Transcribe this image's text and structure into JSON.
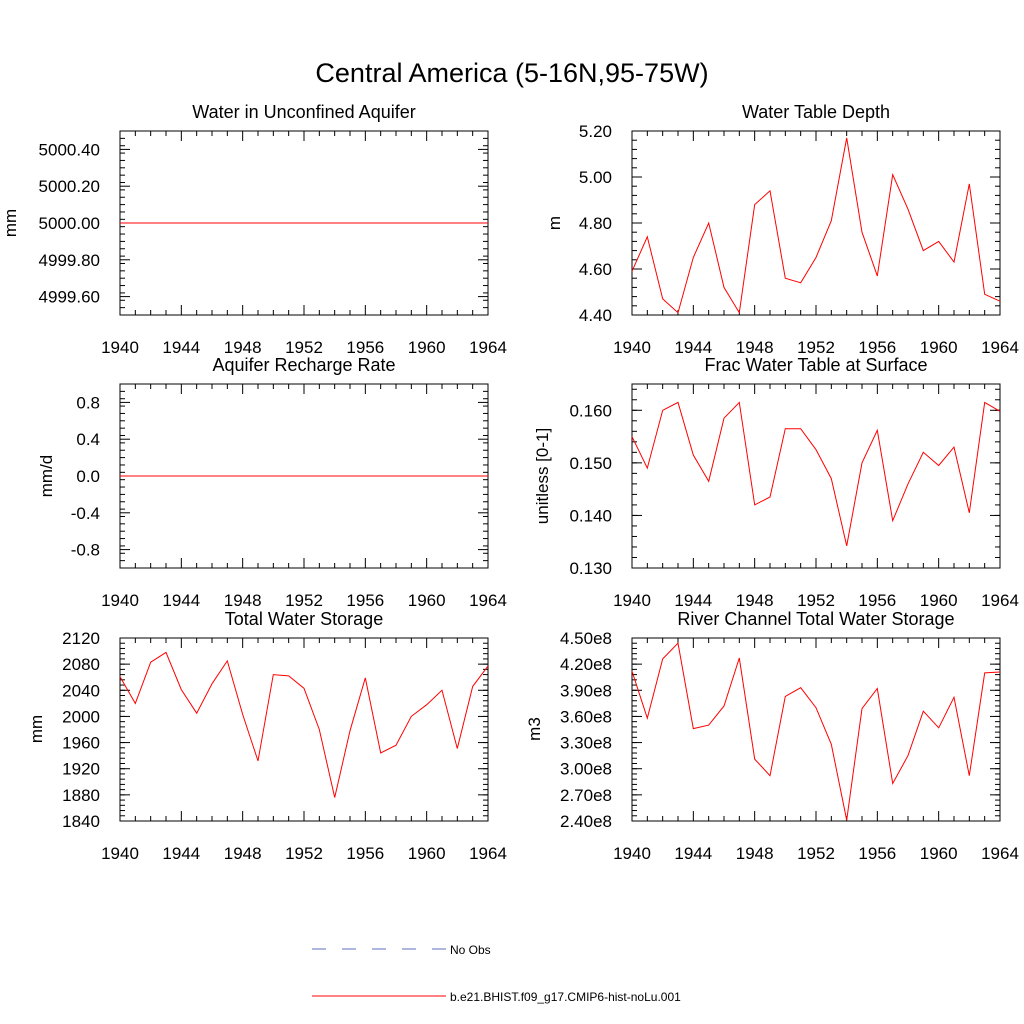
{
  "figure_title": "Central America (5-16N,95-75W)",
  "colors": {
    "model_line": "#ff0000",
    "obs_line": "#5b6fbf",
    "axis": "#000000"
  },
  "legend": [
    {
      "label": "No Obs",
      "style": "dashed",
      "color": "#5b6fbf"
    },
    {
      "label": "b.e21.BHIST.f09_g17.CMIP6-hist-noLu.001",
      "style": "solid",
      "color": "#ff0000"
    }
  ],
  "chart_data": [
    {
      "type": "line",
      "title": "Water in Unconfined Aquifer",
      "xlabel": "",
      "ylabel": "mm",
      "xlim": [
        1940,
        1964
      ],
      "ylim": [
        4999.5,
        5000.5
      ],
      "xticks": [
        "1940",
        "1944",
        "1948",
        "1952",
        "1956",
        "1960",
        "1964"
      ],
      "yticks": [
        {
          "v": 4999.6,
          "label": "4999.60"
        },
        {
          "v": 4999.8,
          "label": "4999.80"
        },
        {
          "v": 5000.0,
          "label": "5000.00"
        },
        {
          "v": 5000.2,
          "label": "5000.20"
        },
        {
          "v": 5000.4,
          "label": "5000.40"
        }
      ],
      "x": [
        1940,
        1964
      ],
      "series": [
        {
          "values": [
            5000.0,
            5000.0
          ]
        }
      ]
    },
    {
      "type": "line",
      "title": "Water Table Depth",
      "xlabel": "",
      "ylabel": "m",
      "xlim": [
        1940,
        1964
      ],
      "ylim": [
        4.4,
        5.2
      ],
      "xticks": [
        "1940",
        "1944",
        "1948",
        "1952",
        "1956",
        "1960",
        "1964"
      ],
      "yticks": [
        {
          "v": 4.4,
          "label": "4.40"
        },
        {
          "v": 4.6,
          "label": "4.60"
        },
        {
          "v": 4.8,
          "label": "4.80"
        },
        {
          "v": 5.0,
          "label": "5.00"
        },
        {
          "v": 5.2,
          "label": "5.20"
        }
      ],
      "x": [
        1940,
        1941,
        1942,
        1943,
        1944,
        1945,
        1946,
        1947,
        1948,
        1949,
        1950,
        1951,
        1952,
        1953,
        1954,
        1955,
        1956,
        1957,
        1958,
        1959,
        1960,
        1961,
        1962,
        1963,
        1964
      ],
      "series": [
        {
          "values": [
            4.59,
            4.74,
            4.47,
            4.41,
            4.65,
            4.8,
            4.52,
            4.41,
            4.88,
            4.94,
            4.56,
            4.54,
            4.65,
            4.81,
            5.17,
            4.76,
            4.57,
            5.01,
            4.86,
            4.68,
            4.72,
            4.63,
            4.97,
            4.49,
            4.46
          ]
        }
      ]
    },
    {
      "type": "line",
      "title": "Aquifer Recharge Rate",
      "xlabel": "",
      "ylabel": "mm/d",
      "xlim": [
        1940,
        1964
      ],
      "ylim": [
        -1.0,
        1.0
      ],
      "xticks": [
        "1940",
        "1944",
        "1948",
        "1952",
        "1956",
        "1960",
        "1964"
      ],
      "yticks": [
        {
          "v": -0.8,
          "label": "-0.8"
        },
        {
          "v": -0.4,
          "label": "-0.4"
        },
        {
          "v": 0.0,
          "label": "0.0"
        },
        {
          "v": 0.4,
          "label": "0.4"
        },
        {
          "v": 0.8,
          "label": "0.8"
        }
      ],
      "x": [
        1940,
        1964
      ],
      "series": [
        {
          "values": [
            0.0,
            0.0
          ]
        }
      ]
    },
    {
      "type": "line",
      "title": "Frac Water Table at Surface",
      "xlabel": "",
      "ylabel": "unitless [0-1]",
      "xlim": [
        1940,
        1964
      ],
      "ylim": [
        0.13,
        0.165
      ],
      "xticks": [
        "1940",
        "1944",
        "1948",
        "1952",
        "1956",
        "1960",
        "1964"
      ],
      "yticks": [
        {
          "v": 0.13,
          "label": "0.130"
        },
        {
          "v": 0.14,
          "label": "0.140"
        },
        {
          "v": 0.15,
          "label": "0.150"
        },
        {
          "v": 0.16,
          "label": "0.160"
        }
      ],
      "x": [
        1940,
        1941,
        1942,
        1943,
        1944,
        1945,
        1946,
        1947,
        1948,
        1949,
        1950,
        1951,
        1952,
        1953,
        1954,
        1955,
        1956,
        1957,
        1958,
        1959,
        1960,
        1961,
        1962,
        1963,
        1964
      ],
      "series": [
        {
          "values": [
            0.155,
            0.149,
            0.16,
            0.1615,
            0.1515,
            0.1465,
            0.1585,
            0.1615,
            0.142,
            0.1435,
            0.1565,
            0.1565,
            0.1525,
            0.147,
            0.1342,
            0.15,
            0.1562,
            0.139,
            0.146,
            0.152,
            0.1495,
            0.153,
            0.1405,
            0.1615,
            0.1598
          ]
        }
      ]
    },
    {
      "type": "line",
      "title": "Total Water Storage",
      "xlabel": "",
      "ylabel": "mm",
      "xlim": [
        1940,
        1964
      ],
      "ylim": [
        1840,
        2120
      ],
      "xticks": [
        "1940",
        "1944",
        "1948",
        "1952",
        "1956",
        "1960",
        "1964"
      ],
      "yticks": [
        {
          "v": 1840,
          "label": "1840"
        },
        {
          "v": 1880,
          "label": "1880"
        },
        {
          "v": 1920,
          "label": "1920"
        },
        {
          "v": 1960,
          "label": "1960"
        },
        {
          "v": 2000,
          "label": "2000"
        },
        {
          "v": 2040,
          "label": "2040"
        },
        {
          "v": 2080,
          "label": "2080"
        },
        {
          "v": 2120,
          "label": "2120"
        }
      ],
      "x": [
        1940,
        1941,
        1942,
        1943,
        1944,
        1945,
        1946,
        1947,
        1948,
        1949,
        1950,
        1951,
        1952,
        1953,
        1954,
        1955,
        1956,
        1957,
        1958,
        1959,
        1960,
        1961,
        1962,
        1963,
        1964
      ],
      "series": [
        {
          "values": [
            2061,
            2020,
            2083,
            2098,
            2041,
            2005,
            2050,
            2085,
            2003,
            1932,
            2064,
            2062,
            2043,
            1980,
            1876,
            1978,
            2059,
            1944,
            1956,
            2000,
            2018,
            2040,
            1951,
            2046,
            2077
          ]
        }
      ]
    },
    {
      "type": "line",
      "title": "River Channel Total Water Storage",
      "xlabel": "",
      "ylabel": "m3",
      "xlim": [
        1940,
        1964
      ],
      "ylim": [
        240000000.0,
        450000000.0
      ],
      "xticks": [
        "1940",
        "1944",
        "1948",
        "1952",
        "1956",
        "1960",
        "1964"
      ],
      "yticks": [
        {
          "v": 240000000.0,
          "label": "2.40e8"
        },
        {
          "v": 270000000.0,
          "label": "2.70e8"
        },
        {
          "v": 300000000.0,
          "label": "3.00e8"
        },
        {
          "v": 330000000.0,
          "label": "3.30e8"
        },
        {
          "v": 360000000.0,
          "label": "3.60e8"
        },
        {
          "v": 390000000.0,
          "label": "3.90e8"
        },
        {
          "v": 420000000.0,
          "label": "4.20e8"
        },
        {
          "v": 450000000.0,
          "label": "4.50e8"
        }
      ],
      "x": [
        1940,
        1941,
        1942,
        1943,
        1944,
        1945,
        1946,
        1947,
        1948,
        1949,
        1950,
        1951,
        1952,
        1953,
        1954,
        1955,
        1956,
        1957,
        1958,
        1959,
        1960,
        1961,
        1962,
        1963,
        1964
      ],
      "series": [
        {
          "values": [
            412000000.0,
            358000000.0,
            426000000.0,
            444000000.0,
            346000000.0,
            350000000.0,
            372000000.0,
            427000000.0,
            311000000.0,
            292000000.0,
            383000000.0,
            393000000.0,
            370000000.0,
            328000000.0,
            241000000.0,
            369000000.0,
            392000000.0,
            283000000.0,
            315000000.0,
            366000000.0,
            347000000.0,
            382000000.0,
            292000000.0,
            410000000.0,
            411000000.0
          ]
        }
      ]
    }
  ]
}
